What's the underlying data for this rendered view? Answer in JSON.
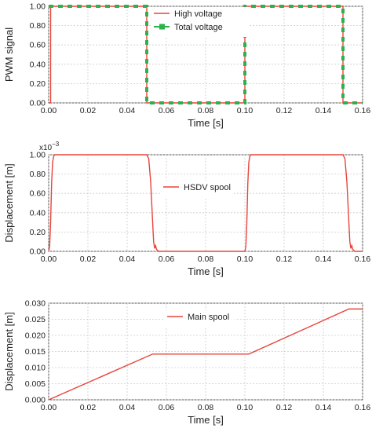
{
  "chart_data": [
    {
      "type": "line",
      "xlabel": "Time [s]",
      "ylabel": "PWM signal",
      "xlim": [
        0,
        0.16
      ],
      "ylim": [
        0,
        1
      ],
      "xticks": [
        "0.00",
        "0.02",
        "0.04",
        "0.06",
        "0.08",
        "0.10",
        "0.12",
        "0.14",
        "0.16"
      ],
      "yticks": [
        "0.00",
        "0.20",
        "0.40",
        "0.60",
        "0.80",
        "1.00"
      ],
      "grid": true,
      "legend_position": "top-center",
      "series": [
        {
          "name": "High voltage",
          "color": "#e8453c",
          "style": "line",
          "x": [
            0,
            0.001,
            0.001,
            0.05,
            0.05,
            0.1,
            0.1,
            0.101,
            0.101,
            0.15,
            0.15,
            0.16
          ],
          "y": [
            0,
            0,
            1,
            1,
            0,
            0,
            1,
            1,
            1,
            1,
            0,
            0
          ]
        },
        {
          "name": "Total voltage",
          "color": "#2bb24c",
          "style": "dashed-square-markers",
          "x": [
            0,
            0.05,
            0.05,
            0.1,
            0.1,
            0.15,
            0.15,
            0.16
          ],
          "y": [
            1,
            1,
            0,
            0,
            1,
            1,
            0,
            0
          ]
        }
      ]
    },
    {
      "type": "line",
      "xlabel": "Time [s]",
      "ylabel": "Displacement [m]",
      "exponent_label": "x10",
      "exponent_value": "−3",
      "xlim": [
        0,
        0.16
      ],
      "ylim": [
        0,
        1
      ],
      "xticks": [
        "0.00",
        "0.02",
        "0.04",
        "0.06",
        "0.08",
        "0.10",
        "0.12",
        "0.14",
        "0.16"
      ],
      "yticks": [
        "0.00",
        "0.20",
        "0.40",
        "0.60",
        "0.80",
        "1.00"
      ],
      "grid": true,
      "legend_position": "center",
      "series": [
        {
          "name": "HSDV spool",
          "color": "#e8453c",
          "x": [
            0,
            0.0005,
            0.001,
            0.0015,
            0.002,
            0.0025,
            0.003,
            0.0035,
            0.05,
            0.051,
            0.052,
            0.053,
            0.0535,
            0.054,
            0.0545,
            0.055,
            0.0555,
            0.056,
            0.1,
            0.1005,
            0.101,
            0.1015,
            0.102,
            0.1025,
            0.103,
            0.1035,
            0.15,
            0.151,
            0.152,
            0.153,
            0.1535,
            0.154,
            0.1545,
            0.155,
            0.1555,
            0.156,
            0.16
          ],
          "y": [
            0,
            0.05,
            0.3,
            0.7,
            0.92,
            0.98,
            1.0,
            1.0,
            1.0,
            0.96,
            0.72,
            0.3,
            0.1,
            0.03,
            0.06,
            0.02,
            0.01,
            0,
            0,
            0.05,
            0.3,
            0.7,
            0.92,
            0.98,
            1.0,
            1.0,
            1.0,
            0.96,
            0.72,
            0.3,
            0.1,
            0.03,
            0.06,
            0.02,
            0.01,
            0,
            0
          ]
        }
      ]
    },
    {
      "type": "line",
      "xlabel": "Time [s]",
      "ylabel": "Displacement [m]",
      "xlim": [
        0,
        0.16
      ],
      "ylim": [
        0,
        0.03
      ],
      "xticks": [
        "0.00",
        "0.02",
        "0.04",
        "0.06",
        "0.08",
        "0.10",
        "0.12",
        "0.14",
        "0.16"
      ],
      "yticks": [
        "0.000",
        "0.005",
        "0.010",
        "0.015",
        "0.020",
        "0.025",
        "0.030"
      ],
      "grid": true,
      "legend_position": "top-center",
      "series": [
        {
          "name": "Main spool",
          "color": "#e8453c",
          "x": [
            0,
            0.053,
            0.102,
            0.153,
            0.16
          ],
          "y": [
            0,
            0.0142,
            0.0142,
            0.0282,
            0.0282
          ]
        }
      ]
    }
  ]
}
